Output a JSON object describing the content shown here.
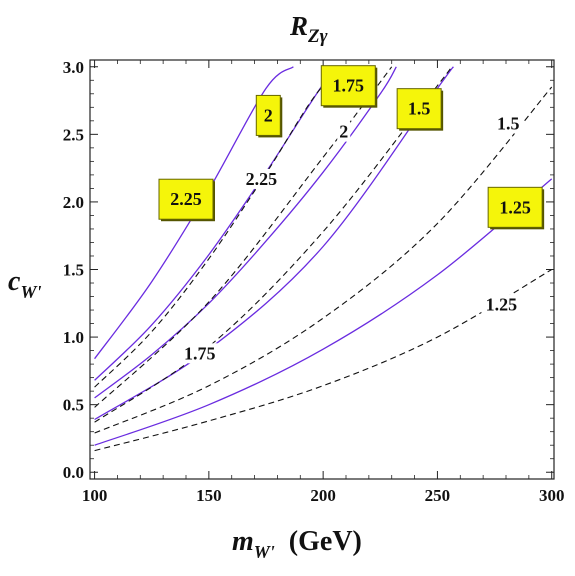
{
  "chart_data": {
    "type": "line",
    "title": {
      "main": "R",
      "sub": "Zγ"
    },
    "xlabel": {
      "main": "m",
      "sub": "W'",
      "unit": "(GeV)"
    },
    "ylabel": {
      "main": "c",
      "sub": "W'"
    },
    "xlim": [
      98,
      301
    ],
    "ylim": [
      -0.05,
      3.05
    ],
    "xticks": [
      100,
      150,
      200,
      250,
      300
    ],
    "yticks": [
      0.0,
      0.5,
      1.0,
      1.5,
      2.0,
      2.5,
      3.0
    ],
    "ytick_labels": [
      "0.0",
      "0.5",
      "1.0",
      "1.5",
      "2.0",
      "2.5",
      "3.0"
    ],
    "grid": false,
    "colors": {
      "solid": "#6a2ce0",
      "dashed": "#111111",
      "highlight_box": "#f5f50a",
      "highlight_border": "#666600"
    },
    "series": [
      {
        "name": "solid 2.25",
        "style": "solid",
        "x": [
          100,
          125,
          150,
          175,
          187
        ],
        "y": [
          0.84,
          1.41,
          2.09,
          2.84,
          3.0
        ]
      },
      {
        "name": "solid 2",
        "style": "solid",
        "x": [
          100,
          125,
          150,
          175,
          200,
          208
        ],
        "y": [
          0.68,
          1.09,
          1.61,
          2.22,
          2.87,
          3.0
        ]
      },
      {
        "name": "solid 1.75",
        "style": "solid",
        "x": [
          100,
          125,
          150,
          175,
          200,
          225,
          232
        ],
        "y": [
          0.55,
          0.87,
          1.25,
          1.71,
          2.22,
          2.8,
          3.0
        ]
      },
      {
        "name": "solid 1.5",
        "style": "solid",
        "x": [
          100,
          150,
          200,
          250,
          257
        ],
        "y": [
          0.39,
          0.91,
          1.67,
          2.84,
          3.0
        ]
      },
      {
        "name": "solid 1.25",
        "style": "solid",
        "x": [
          100,
          150,
          200,
          250,
          300
        ],
        "y": [
          0.2,
          0.5,
          0.91,
          1.46,
          2.17
        ]
      },
      {
        "name": "dashed 2.25",
        "style": "dashed",
        "x": [
          100,
          125,
          150,
          175,
          200,
          218
        ],
        "y": [
          0.63,
          1.04,
          1.58,
          2.21,
          2.86,
          3.0
        ]
      },
      {
        "name": "dashed 2",
        "style": "dashed",
        "x": [
          100,
          150,
          200,
          230
        ],
        "y": [
          0.48,
          1.26,
          2.33,
          3.0
        ]
      },
      {
        "name": "dashed 1.75",
        "style": "dashed",
        "x": [
          100,
          150,
          200,
          250,
          256
        ],
        "y": [
          0.37,
          0.93,
          1.78,
          2.86,
          3.0
        ]
      },
      {
        "name": "dashed 1.5",
        "style": "dashed",
        "x": [
          100,
          150,
          200,
          250,
          300
        ],
        "y": [
          0.29,
          0.64,
          1.14,
          1.84,
          2.85
        ]
      },
      {
        "name": "dashed 1.25",
        "style": "dashed",
        "x": [
          100,
          150,
          200,
          250,
          300
        ],
        "y": [
          0.16,
          0.38,
          0.64,
          1.0,
          1.5
        ]
      }
    ],
    "contour_labels": [
      {
        "text": "2.25",
        "x": 140,
        "y": 2.02,
        "boxed": true
      },
      {
        "text": "2",
        "x": 176,
        "y": 2.64,
        "boxed": true
      },
      {
        "text": "1.75",
        "x": 211,
        "y": 2.86,
        "boxed": true
      },
      {
        "text": "1.5",
        "x": 242,
        "y": 2.69,
        "boxed": true
      },
      {
        "text": "1.25",
        "x": 284,
        "y": 1.96,
        "boxed": true
      },
      {
        "text": "2.25",
        "x": 173,
        "y": 2.17,
        "boxed": false
      },
      {
        "text": "2",
        "x": 209,
        "y": 2.52,
        "boxed": false
      },
      {
        "text": "1.75",
        "x": 146,
        "y": 0.88,
        "boxed": false
      },
      {
        "text": "1.5",
        "x": 281,
        "y": 2.58,
        "boxed": false
      },
      {
        "text": "1.25",
        "x": 278,
        "y": 1.24,
        "boxed": false
      }
    ]
  }
}
